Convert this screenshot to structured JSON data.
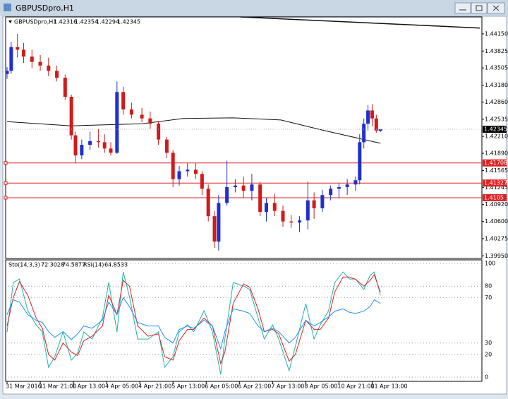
{
  "chart_data": [
    {
      "type": "candlestick",
      "title": "GBPUSDpro,H1",
      "x": [
        0,
        2,
        5,
        8,
        12,
        16,
        20,
        24,
        28,
        31,
        33,
        36,
        40,
        44,
        47,
        50,
        53,
        56,
        60,
        65,
        69,
        73,
        77,
        80,
        83,
        87,
        91,
        94,
        97,
        100,
        102,
        106,
        110,
        114,
        118,
        122,
        125,
        129,
        133,
        137,
        141,
        145,
        148,
        152,
        156,
        160,
        164,
        168,
        170,
        172,
        174,
        176,
        178,
        180
      ],
      "open": [
        1.4339,
        1.4345,
        1.439,
        1.4385,
        1.4372,
        1.4362,
        1.4355,
        1.4345,
        1.4332,
        1.4296,
        1.4223,
        1.4185,
        1.4205,
        1.4212,
        1.421,
        1.4198,
        1.419,
        1.4305,
        1.4272,
        1.4262,
        1.4255,
        1.4245,
        1.4215,
        1.419,
        1.414,
        1.4155,
        1.4158,
        1.415,
        1.4122,
        1.407,
        1.4022,
        1.4095,
        1.4125,
        1.4128,
        1.4118,
        1.413,
        1.4078,
        1.4095,
        1.408,
        1.406,
        1.4058,
        1.4062,
        1.41,
        1.4085,
        1.411,
        1.4122,
        1.4125,
        1.413,
        1.4138,
        1.421,
        1.4245,
        1.427,
        1.4255,
        1.42316
      ],
      "high": [
        1.4352,
        1.44,
        1.4415,
        1.4398,
        1.4385,
        1.4375,
        1.437,
        1.4355,
        1.4338,
        1.43,
        1.423,
        1.4215,
        1.423,
        1.4235,
        1.4225,
        1.421,
        1.4325,
        1.4315,
        1.4285,
        1.4275,
        1.4268,
        1.425,
        1.422,
        1.4195,
        1.4165,
        1.417,
        1.417,
        1.4155,
        1.413,
        1.408,
        1.411,
        1.4175,
        1.414,
        1.4145,
        1.415,
        1.4135,
        1.4105,
        1.4112,
        1.409,
        1.4072,
        1.407,
        1.4135,
        1.4115,
        1.412,
        1.4128,
        1.4132,
        1.414,
        1.4145,
        1.4225,
        1.4255,
        1.428,
        1.4282,
        1.4262,
        1.42354
      ],
      "low": [
        1.433,
        1.434,
        1.437,
        1.436,
        1.435,
        1.4345,
        1.4335,
        1.4325,
        1.429,
        1.4215,
        1.417,
        1.4178,
        1.4195,
        1.42,
        1.419,
        1.4185,
        1.4188,
        1.4262,
        1.4255,
        1.4248,
        1.4235,
        1.4205,
        1.418,
        1.4125,
        1.4128,
        1.4145,
        1.414,
        1.411,
        1.406,
        1.401,
        1.4005,
        1.409,
        1.4115,
        1.4105,
        1.41,
        1.407,
        1.406,
        1.407,
        1.405,
        1.4048,
        1.404,
        1.4045,
        1.4065,
        1.4078,
        1.41,
        1.4105,
        1.411,
        1.4118,
        1.413,
        1.4198,
        1.4232,
        1.424,
        1.4228,
        1.42294
      ],
      "close": [
        1.4345,
        1.439,
        1.4385,
        1.4372,
        1.4362,
        1.4355,
        1.4345,
        1.4332,
        1.4296,
        1.4223,
        1.4185,
        1.4205,
        1.4212,
        1.421,
        1.4198,
        1.419,
        1.4305,
        1.4272,
        1.4262,
        1.4255,
        1.4245,
        1.4215,
        1.419,
        1.414,
        1.4155,
        1.4158,
        1.415,
        1.4122,
        1.407,
        1.4022,
        1.4095,
        1.4125,
        1.4128,
        1.4118,
        1.413,
        1.4078,
        1.4095,
        1.408,
        1.406,
        1.4058,
        1.4062,
        1.41,
        1.4085,
        1.411,
        1.4122,
        1.4125,
        1.413,
        1.4138,
        1.421,
        1.4245,
        1.427,
        1.4255,
        1.4232,
        1.42345
      ],
      "up_color": "#1f2fd0",
      "down_color": "#d11a1a",
      "lines": [
        {
          "color": "#111111",
          "x": [
            0,
            31,
            65,
            85,
            109,
            132,
            153,
            180
          ],
          "values": [
            1.4249,
            1.4241,
            1.4245,
            1.4255,
            1.4256,
            1.4252,
            1.4232,
            1.4208
          ]
        },
        {
          "color": "#111111",
          "x": [
            112.5,
            228
          ],
          "values": [
            1.4447,
            1.4426
          ]
        }
      ],
      "levels": {
        "color": "#e02020",
        "values": [
          1.41708,
          1.41327,
          1.4105
        ]
      },
      "ylim": [
        1.399,
        1.4447
      ],
      "yticks": [
        {
          "value": 1.4415,
          "label": "1.44150"
        },
        {
          "value": 1.43825,
          "label": "1.43825"
        },
        {
          "value": 1.43505,
          "label": "1.43505"
        },
        {
          "value": 1.4318,
          "label": "1.43180"
        },
        {
          "value": 1.4286,
          "label": "1.42860"
        },
        {
          "value": 1.42535,
          "label": "1.42535"
        },
        {
          "value": 1.4221,
          "label": "1.42210"
        },
        {
          "value": 1.4189,
          "label": "1.41890"
        },
        {
          "value": 1.41565,
          "label": "1.41565"
        },
        {
          "value": 1.41245,
          "label": "1.41245"
        },
        {
          "value": 1.4092,
          "label": "1.40920"
        },
        {
          "value": 1.406,
          "label": "1.40600"
        },
        {
          "value": 1.40275,
          "label": "1.40275"
        },
        {
          "value": 1.3995,
          "label": "1.39950"
        }
      ],
      "xticks": [
        {
          "value": 0,
          "label": "31 Mar 2016"
        },
        {
          "value": 16,
          "label": "31 Mar 21:00"
        },
        {
          "value": 32,
          "label": "1 Apr 13:00"
        },
        {
          "value": 48,
          "label": "4 Apr 05:00"
        },
        {
          "value": 64,
          "label": "4 Apr 21:00"
        },
        {
          "value": 80,
          "label": "5 Apr 13:00"
        },
        {
          "value": 96,
          "label": "6 Apr 05:00"
        },
        {
          "value": 112,
          "label": "6 Apr 21:00"
        },
        {
          "value": 128,
          "label": "7 Apr 13:00"
        },
        {
          "value": 144,
          "label": "8 Apr 05:00"
        },
        {
          "value": 160,
          "label": "10 Apr 21:00"
        },
        {
          "value": 176,
          "label": "11 Apr 13:00"
        }
      ]
    },
    {
      "type": "line",
      "x": [
        0,
        3,
        6,
        10,
        14,
        17,
        20,
        23,
        27,
        31,
        34,
        37,
        41,
        46,
        49,
        53,
        56,
        59,
        63,
        68,
        73,
        76,
        80,
        83,
        87,
        90,
        95,
        99,
        103,
        105,
        109,
        114,
        117,
        121,
        124,
        128,
        131,
        136,
        139,
        144,
        148,
        151,
        155,
        158,
        162,
        165,
        168,
        172,
        175,
        177,
        180
      ],
      "series": [
        {
          "name": "Sto(14,3,3)",
          "color": "#20b2aa",
          "values": [
            39.8,
            83.2,
            86.3,
            58.4,
            46,
            39.8,
            8.7,
            18,
            39.8,
            14.9,
            21.1,
            39.8,
            33.5,
            52.2,
            83.2,
            39.8,
            92.5,
            70.8,
            33.5,
            33.5,
            39.8,
            8.7,
            18,
            39.8,
            46,
            39.8,
            58.4,
            39.8,
            2.5,
            33.5,
            83.2,
            80.1,
            77,
            52.2,
            33.5,
            46,
            33.5,
            5.6,
            27.3,
            64.6,
            33.5,
            46,
            58.4,
            83.2,
            92.5,
            86.3,
            86.3,
            77,
            89.4,
            92.5,
            72.3028
          ]
        },
        {
          "color": "#e02020",
          "values": [
            45,
            70,
            84,
            72,
            52,
            43,
            20,
            15,
            30,
            22,
            19,
            32,
            36,
            45,
            72,
            55,
            85,
            80,
            45,
            36,
            38,
            18,
            15,
            32,
            42,
            42,
            52,
            45,
            12,
            22,
            65,
            82,
            79,
            60,
            40,
            42,
            38,
            14,
            20,
            50,
            42,
            42,
            52,
            75,
            88,
            88,
            86,
            80,
            85,
            90,
            74.5877
          ]
        },
        {
          "name": "RSI(14)",
          "color": "#1e90ff",
          "values": [
            55,
            68,
            66,
            55,
            50,
            48,
            40,
            35,
            40,
            33,
            38,
            45,
            43,
            50,
            66,
            55,
            70,
            62,
            48,
            45,
            45,
            35,
            30,
            42,
            45,
            43,
            50,
            45,
            25,
            40,
            60,
            58,
            56,
            45,
            40,
            43,
            40,
            30,
            35,
            50,
            45,
            48,
            53,
            58,
            60,
            57,
            56,
            58,
            62,
            68,
            64.8533
          ]
        }
      ],
      "ylim": [
        -3.7,
        103.1
      ],
      "yticks": [
        100,
        80,
        70,
        30,
        20,
        0
      ],
      "grid": true
    }
  ]
}
